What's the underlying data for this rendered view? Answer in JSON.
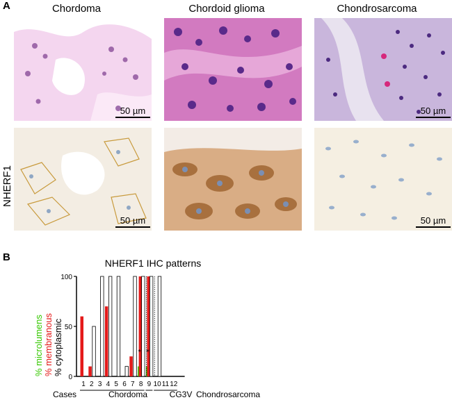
{
  "panels": {
    "a": {
      "letter": "A",
      "columns": [
        "Chordoma",
        "Chordoid glioma",
        "Chondrosarcoma"
      ],
      "row_label": "NHERF1",
      "scalebar_label": "50 µm"
    },
    "b": {
      "letter": "B"
    }
  },
  "chart_data": {
    "type": "bar",
    "title": "NHERF1 IHC patterns",
    "ylabel_parts": [
      {
        "text": "% microlumens",
        "color": "#36c800"
      },
      {
        "text": "% membranous",
        "color": "#e41a1a"
      },
      {
        "text": "% cytoplasmic",
        "color": "#000000"
      }
    ],
    "ylim": [
      0,
      100
    ],
    "yticks": [
      0,
      50,
      100
    ],
    "xlabel_prefix": "Cases",
    "categories": [
      "1",
      "2",
      "3",
      "4",
      "5",
      "6",
      "7",
      "8",
      "9",
      "10",
      "11",
      "12"
    ],
    "groups": [
      {
        "label": "Chordoma",
        "from": 1,
        "to": 8
      },
      {
        "label": "CG3V",
        "from": 9,
        "to": 9
      },
      {
        "label": "Chondrosarcoma",
        "from": 10,
        "to": 12
      }
    ],
    "series": [
      {
        "name": "% microlumens",
        "color": "#36c800",
        "values": [
          0,
          0,
          0,
          0,
          0,
          0,
          0,
          10,
          10,
          0,
          0,
          0
        ]
      },
      {
        "name": "% membranous",
        "color": "#e41a1a",
        "values": [
          60,
          10,
          0,
          70,
          0,
          0,
          20,
          100,
          100,
          0,
          0,
          0
        ]
      },
      {
        "name": "% cytoplasmic",
        "color": "#ffffff",
        "values": [
          0,
          50,
          100,
          100,
          100,
          10,
          100,
          100,
          100,
          100,
          0,
          0
        ]
      }
    ],
    "annotations": [
      {
        "case": "8",
        "text": "*"
      },
      {
        "case": "9",
        "text": "*"
      }
    ],
    "colors": {
      "microlumens": "#36c800",
      "membranous": "#e41a1a",
      "cytoplasmic_outline": "#000000"
    }
  }
}
